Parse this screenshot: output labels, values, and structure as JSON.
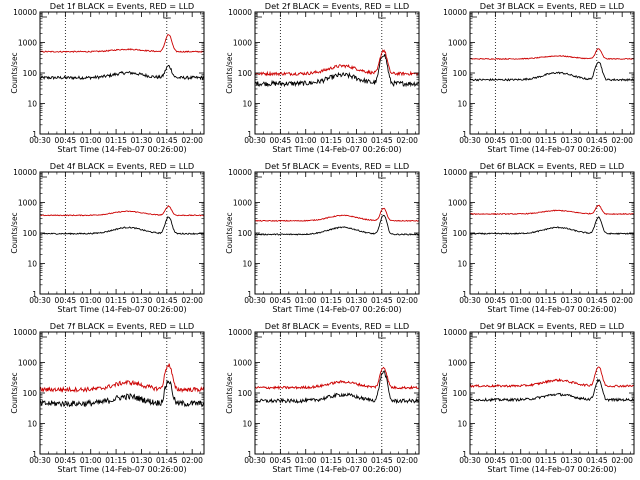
{
  "chart_data": [
    {
      "type": "line",
      "title": "Det 1f BLACK = Events, RED = LLD",
      "xlabel": "Start Time (14-Feb-07 00:26:00)",
      "ylabel": "Counts/sec",
      "yscale": "log",
      "ylim": [
        1,
        10000
      ],
      "x_tick_labels": [
        "00:30",
        "00:45",
        "01:00",
        "01:15",
        "01:30",
        "01:45",
        "02:00"
      ],
      "y_tick_labels": [
        "1",
        "10",
        "100",
        "1000",
        "10000"
      ],
      "x_range_minutes": [
        30,
        127
      ],
      "vertical_markers": [
        45,
        105
      ],
      "series": [
        {
          "color": "#000000",
          "baseline": 70,
          "hump": 1.45,
          "peak": 170,
          "noise": 0.05
        },
        {
          "color": "#cc0000",
          "baseline": 500,
          "hump": 1.2,
          "peak": 1800,
          "noise": 0.02
        }
      ]
    },
    {
      "type": "line",
      "title": "Det 2f BLACK = Events, RED = LLD",
      "xlabel": "Start Time (14-Feb-07 00:26:00)",
      "ylabel": "Counts/sec",
      "yscale": "log",
      "ylim": [
        1,
        10000
      ],
      "x_tick_labels": [
        "00:30",
        "00:45",
        "01:00",
        "01:15",
        "01:30",
        "01:45",
        "02:00"
      ],
      "y_tick_labels": [
        "1",
        "10",
        "100",
        "1000",
        "10000"
      ],
      "x_range_minutes": [
        30,
        127
      ],
      "vertical_markers": [
        45,
        105
      ],
      "series": [
        {
          "color": "#000000",
          "baseline": 45,
          "hump": 1.9,
          "peak": 420,
          "noise": 0.08
        },
        {
          "color": "#cc0000",
          "baseline": 95,
          "hump": 1.8,
          "peak": 560,
          "noise": 0.05
        }
      ]
    },
    {
      "type": "line",
      "title": "Det 3f BLACK = Events, RED = LLD",
      "xlabel": "Start Time (14-Feb-07 00:26:00)",
      "ylabel": "Counts/sec",
      "yscale": "log",
      "ylim": [
        1,
        10000
      ],
      "x_tick_labels": [
        "00:30",
        "00:45",
        "01:00",
        "01:15",
        "01:30",
        "01:45",
        "02:00"
      ],
      "y_tick_labels": [
        "1",
        "10",
        "100",
        "1000",
        "10000"
      ],
      "x_range_minutes": [
        30,
        127
      ],
      "vertical_markers": [
        45,
        105
      ],
      "series": [
        {
          "color": "#000000",
          "baseline": 60,
          "hump": 1.7,
          "peak": 240,
          "noise": 0.03
        },
        {
          "color": "#cc0000",
          "baseline": 290,
          "hump": 1.25,
          "peak": 620,
          "noise": 0.015
        }
      ]
    },
    {
      "type": "line",
      "title": "Det 4f BLACK = Events, RED = LLD",
      "xlabel": "Start Time (14-Feb-07 00:26:00)",
      "ylabel": "Counts/sec",
      "yscale": "log",
      "ylim": [
        1,
        10000
      ],
      "x_tick_labels": [
        "00:30",
        "00:45",
        "01:00",
        "01:15",
        "01:30",
        "01:45",
        "02:00"
      ],
      "y_tick_labels": [
        "1",
        "10",
        "100",
        "1000",
        "10000"
      ],
      "x_range_minutes": [
        30,
        127
      ],
      "vertical_markers": [
        45,
        105
      ],
      "series": [
        {
          "color": "#000000",
          "baseline": 95,
          "hump": 1.6,
          "peak": 340,
          "noise": 0.02
        },
        {
          "color": "#cc0000",
          "baseline": 380,
          "hump": 1.35,
          "peak": 760,
          "noise": 0.015
        }
      ]
    },
    {
      "type": "line",
      "title": "Det 5f BLACK = Events, RED = LLD",
      "xlabel": "Start Time (14-Feb-07 00:26:00)",
      "ylabel": "Counts/sec",
      "yscale": "log",
      "ylim": [
        1,
        10000
      ],
      "x_tick_labels": [
        "00:30",
        "00:45",
        "01:00",
        "01:15",
        "01:30",
        "01:45",
        "02:00"
      ],
      "y_tick_labels": [
        "1",
        "10",
        "100",
        "1000",
        "10000"
      ],
      "x_range_minutes": [
        30,
        127
      ],
      "vertical_markers": [
        45,
        105
      ],
      "series": [
        {
          "color": "#000000",
          "baseline": 90,
          "hump": 1.7,
          "peak": 380,
          "noise": 0.02
        },
        {
          "color": "#cc0000",
          "baseline": 250,
          "hump": 1.5,
          "peak": 640,
          "noise": 0.015
        }
      ]
    },
    {
      "type": "line",
      "title": "Det 6f BLACK = Events, RED = LLD",
      "xlabel": "Start Time (14-Feb-07 00:26:00)",
      "ylabel": "Counts/sec",
      "yscale": "log",
      "ylim": [
        1,
        10000
      ],
      "x_tick_labels": [
        "00:30",
        "00:45",
        "01:00",
        "01:15",
        "01:30",
        "01:45",
        "02:00"
      ],
      "y_tick_labels": [
        "1",
        "10",
        "100",
        "1000",
        "10000"
      ],
      "x_range_minutes": [
        30,
        127
      ],
      "vertical_markers": [
        45,
        105
      ],
      "series": [
        {
          "color": "#000000",
          "baseline": 95,
          "hump": 1.6,
          "peak": 330,
          "noise": 0.02
        },
        {
          "color": "#cc0000",
          "baseline": 420,
          "hump": 1.3,
          "peak": 800,
          "noise": 0.015
        }
      ]
    },
    {
      "type": "line",
      "title": "Det 7f BLACK = Events, RED = LLD",
      "xlabel": "Start Time (14-Feb-07 00:26:00)",
      "ylabel": "Counts/sec",
      "yscale": "log",
      "ylim": [
        1,
        10000
      ],
      "x_tick_labels": [
        "00:30",
        "00:45",
        "01:00",
        "01:15",
        "01:30",
        "01:45",
        "02:00"
      ],
      "y_tick_labels": [
        "1",
        "10",
        "100",
        "1000",
        "10000"
      ],
      "x_range_minutes": [
        30,
        127
      ],
      "vertical_markers": [
        45,
        105
      ],
      "series": [
        {
          "color": "#000000",
          "baseline": 45,
          "hump": 1.7,
          "peak": 250,
          "noise": 0.1
        },
        {
          "color": "#cc0000",
          "baseline": 130,
          "hump": 1.7,
          "peak": 850,
          "noise": 0.07
        }
      ]
    },
    {
      "type": "line",
      "title": "Det 8f BLACK = Events, RED = LLD",
      "xlabel": "Start Time (14-Feb-07 00:26:00)",
      "ylabel": "Counts/sec",
      "yscale": "log",
      "ylim": [
        1,
        10000
      ],
      "x_tick_labels": [
        "00:30",
        "00:45",
        "01:00",
        "01:15",
        "01:30",
        "01:45",
        "02:00"
      ],
      "y_tick_labels": [
        "1",
        "10",
        "100",
        "1000",
        "10000"
      ],
      "x_range_minutes": [
        30,
        127
      ],
      "vertical_markers": [
        45,
        105
      ],
      "series": [
        {
          "color": "#000000",
          "baseline": 55,
          "hump": 1.6,
          "peak": 500,
          "noise": 0.06
        },
        {
          "color": "#cc0000",
          "baseline": 150,
          "hump": 1.55,
          "peak": 700,
          "noise": 0.04
        }
      ]
    },
    {
      "type": "line",
      "title": "Det 9f BLACK = Events, RED = LLD",
      "xlabel": "Start Time (14-Feb-07 00:26:00)",
      "ylabel": "Counts/sec",
      "yscale": "log",
      "ylim": [
        1,
        10000
      ],
      "x_tick_labels": [
        "00:30",
        "00:45",
        "01:00",
        "01:15",
        "01:30",
        "01:45",
        "02:00"
      ],
      "y_tick_labels": [
        "1",
        "10",
        "100",
        "1000",
        "10000"
      ],
      "x_range_minutes": [
        30,
        127
      ],
      "vertical_markers": [
        45,
        105
      ],
      "series": [
        {
          "color": "#000000",
          "baseline": 60,
          "hump": 1.5,
          "peak": 260,
          "noise": 0.04
        },
        {
          "color": "#cc0000",
          "baseline": 170,
          "hump": 1.55,
          "peak": 720,
          "noise": 0.035
        }
      ]
    }
  ]
}
